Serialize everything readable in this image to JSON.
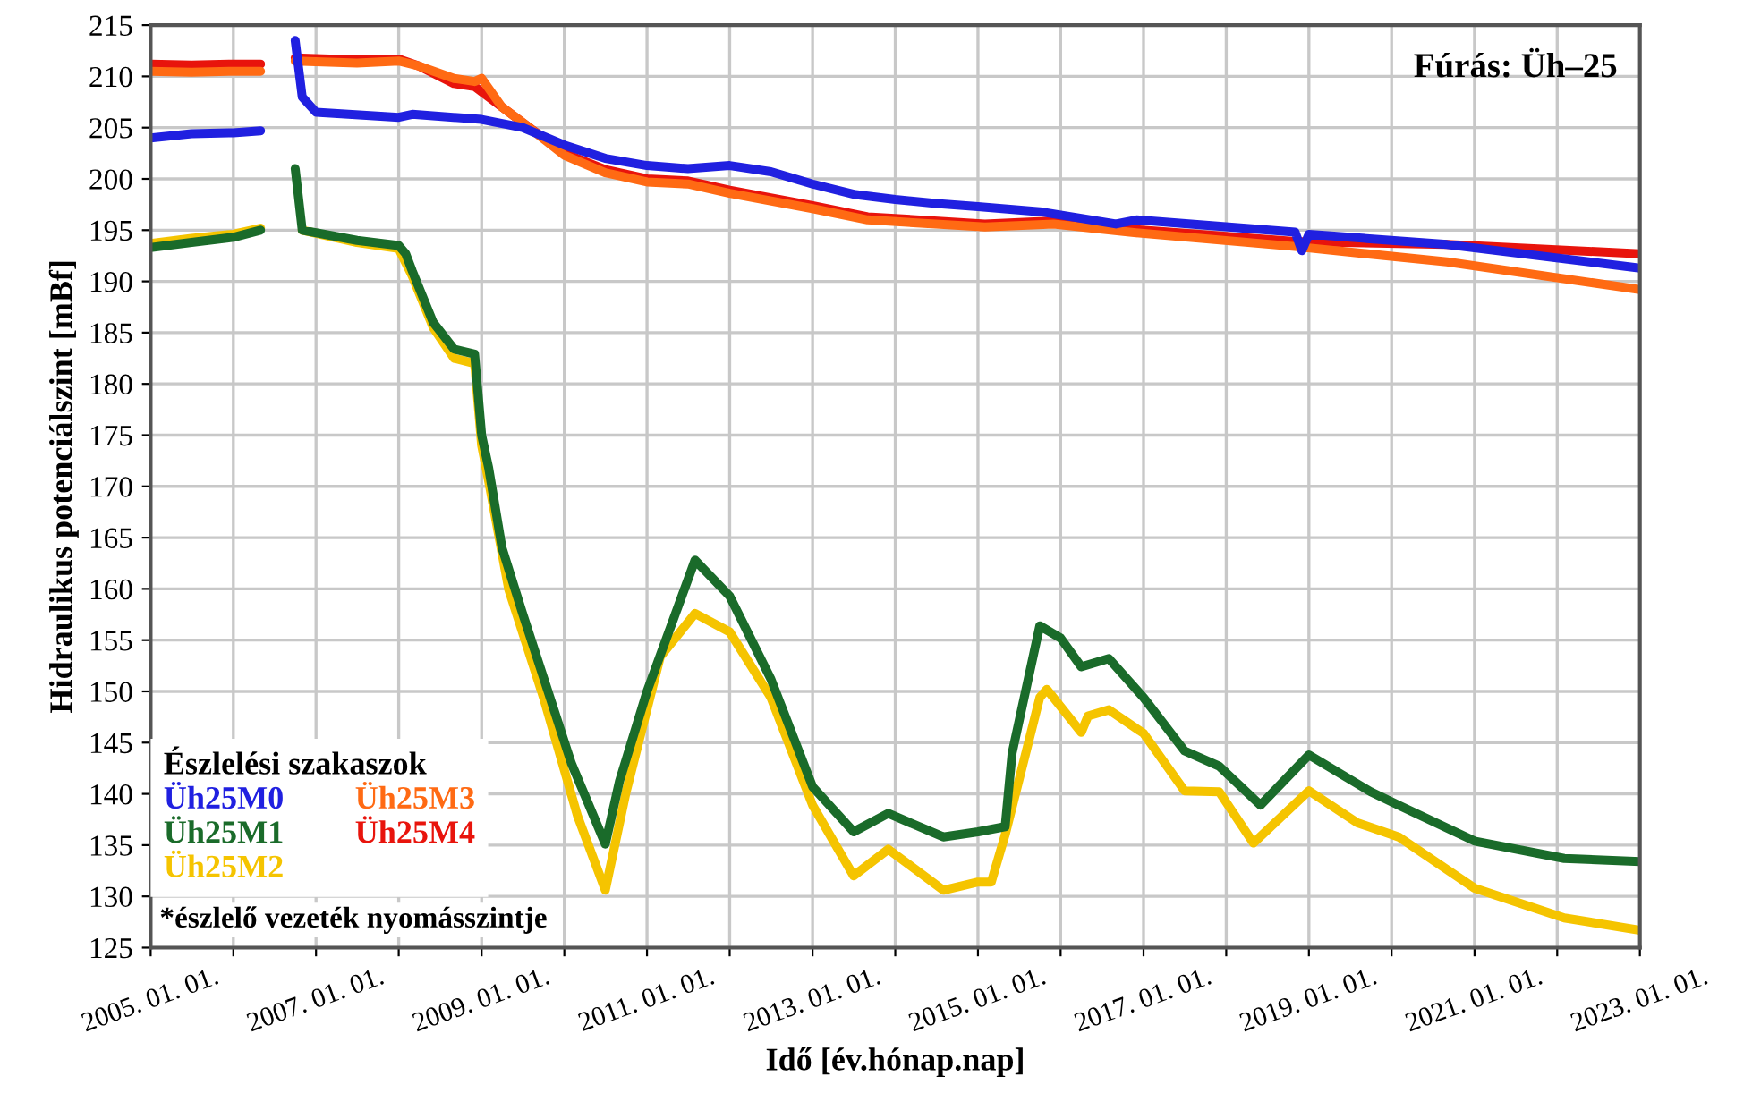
{
  "chart_data": {
    "type": "line",
    "xlabel": "Idő [év.hónap.nap]",
    "ylabel": "Hidraulikus potenciálszint [mBf]",
    "legend_title": "Észlelési szakaszok",
    "legend": "bottom left",
    "grid": true,
    "marker": "none",
    "line_style": "solid",
    "annotations": [
      "Fúrás: Üh–25",
      "*észlelő vezeték nyomásszintje"
    ],
    "xlim": [
      "2005-01-01",
      "2023-01-01"
    ],
    "xticks": [
      {
        "value": "2005-01-01",
        "label": "2005. 01. 01."
      },
      {
        "value": "2006-01-01",
        "label": null
      },
      {
        "value": "2007-01-01",
        "label": "2007. 01. 01."
      },
      {
        "value": "2008-01-01",
        "label": null
      },
      {
        "value": "2009-01-01",
        "label": "2009. 01. 01."
      },
      {
        "value": "2010-01-01",
        "label": null
      },
      {
        "value": "2011-01-01",
        "label": "2011. 01. 01."
      },
      {
        "value": "2012-01-01",
        "label": null
      },
      {
        "value": "2013-01-01",
        "label": "2013. 01. 01."
      },
      {
        "value": "2014-01-01",
        "label": null
      },
      {
        "value": "2015-01-01",
        "label": "2015. 01. 01."
      },
      {
        "value": "2016-01-01",
        "label": null
      },
      {
        "value": "2017-01-01",
        "label": "2017. 01. 01."
      },
      {
        "value": "2018-01-01",
        "label": null
      },
      {
        "value": "2019-01-01",
        "label": "2019. 01. 01."
      },
      {
        "value": "2020-01-01",
        "label": null
      },
      {
        "value": "2021-01-01",
        "label": "2021. 01. 01."
      },
      {
        "value": "2022-01-01",
        "label": null
      },
      {
        "value": "2023-01-01",
        "label": "2023. 01. 01."
      }
    ],
    "ylim": [
      125,
      215
    ],
    "yticks": [
      125,
      130,
      135,
      140,
      145,
      150,
      155,
      160,
      165,
      170,
      175,
      180,
      185,
      190,
      195,
      200,
      205,
      210,
      215
    ],
    "series": [
      {
        "name": "Üh25M0",
        "color": "#2020e0",
        "x": [
          "2005-01",
          "2005-07",
          "2006-01",
          "2006-05",
          "2006-08",
          "2006-10",
          "2006-11",
          "2007-01",
          "2008-01",
          "2008-03",
          "2009-01",
          "2009-07",
          "2010-01",
          "2010-07",
          "2011-01",
          "2011-07",
          "2012-01",
          "2012-07",
          "2013-01",
          "2013-07",
          "2014-01",
          "2014-07",
          "2015-01",
          "2015-10",
          "2016-09",
          "2016-12",
          "2018-11",
          "2018-12",
          "2019-01",
          "2020-09",
          "2023-01"
        ],
        "values": [
          204.0,
          204.4,
          204.5,
          204.7,
          null,
          213.5,
          208.0,
          206.5,
          206.0,
          206.3,
          205.8,
          205.0,
          203.3,
          202.0,
          201.3,
          201.0,
          201.3,
          200.7,
          199.5,
          198.5,
          198.0,
          197.6,
          197.3,
          196.8,
          195.6,
          196.0,
          194.8,
          193.0,
          194.6,
          193.6,
          191.3
        ]
      },
      {
        "name": "Üh25M1",
        "color": "#1a6b2a",
        "x": [
          "2005-01",
          "2005-07",
          "2006-01",
          "2006-05",
          "2006-08",
          "2006-10",
          "2006-11",
          "2007-07",
          "2008-01",
          "2008-02",
          "2008-03",
          "2008-06",
          "2008-09",
          "2008-12",
          "2009-01",
          "2009-02",
          "2009-04",
          "2009-07",
          "2010-02",
          "2010-07",
          "2010-09",
          "2011-01",
          "2011-08",
          "2012-01",
          "2012-07",
          "2013-01",
          "2013-07",
          "2013-12",
          "2014-08",
          "2015-01",
          "2015-05",
          "2015-06",
          "2015-10",
          "2016-01",
          "2016-04",
          "2016-08",
          "2017-01",
          "2017-07",
          "2017-12",
          "2018-06",
          "2019-01",
          "2019-10",
          "2020-02",
          "2021-01",
          "2022-02",
          "2023-01"
        ],
        "values": [
          193.3,
          193.8,
          194.3,
          195.0,
          null,
          201.0,
          195.0,
          194.0,
          193.5,
          192.7,
          191.0,
          186.0,
          183.4,
          182.9,
          175.0,
          171.8,
          164.0,
          157.6,
          143.0,
          135.1,
          141.2,
          150.0,
          162.8,
          159.3,
          151.2,
          140.7,
          136.3,
          138.1,
          135.8,
          136.3,
          136.8,
          144.0,
          156.4,
          155.2,
          152.4,
          153.2,
          149.4,
          144.2,
          142.7,
          138.9,
          143.8,
          140.2,
          138.9,
          135.4,
          133.7,
          133.4
        ]
      },
      {
        "name": "Üh25M2",
        "color": "#f5c400",
        "x": [
          "2005-01",
          "2005-07",
          "2006-01",
          "2006-05",
          "2006-08",
          "2006-11",
          "2007-07",
          "2008-01",
          "2008-03",
          "2008-06",
          "2008-09",
          "2008-12",
          "2009-01",
          "2009-02",
          "2009-05",
          "2009-10",
          "2010-03",
          "2010-07",
          "2010-10",
          "2011-03",
          "2011-08",
          "2012-01",
          "2012-07",
          "2013-01",
          "2013-07",
          "2013-12",
          "2014-08",
          "2015-01",
          "2015-03",
          "2015-05",
          "2015-10",
          "2015-11",
          "2016-04",
          "2016-05",
          "2016-08",
          "2017-01",
          "2017-07",
          "2017-12",
          "2018-05",
          "2019-01",
          "2019-08",
          "2020-02",
          "2021-01",
          "2022-02",
          "2023-01"
        ],
        "values": [
          193.7,
          194.2,
          194.6,
          195.2,
          null,
          195.0,
          193.8,
          193.2,
          190.5,
          185.5,
          182.5,
          182.0,
          174.0,
          170.5,
          159.9,
          149.4,
          137.8,
          130.6,
          140.2,
          153.4,
          157.6,
          155.8,
          149.4,
          138.9,
          132.0,
          134.6,
          130.6,
          131.4,
          131.4,
          136.0,
          149.4,
          150.2,
          146.0,
          147.6,
          148.2,
          145.9,
          140.3,
          140.2,
          135.2,
          140.3,
          137.2,
          135.8,
          130.8,
          127.9,
          126.7
        ]
      },
      {
        "name": "Üh25M3",
        "color": "#ff6a13",
        "x": [
          "2005-01",
          "2005-07",
          "2006-01",
          "2006-05",
          "2006-08",
          "2006-10",
          "2007-07",
          "2008-01",
          "2008-04",
          "2008-09",
          "2008-12",
          "2009-01",
          "2009-04",
          "2009-07",
          "2010-01",
          "2010-07",
          "2011-01",
          "2011-07",
          "2012-01",
          "2013-01",
          "2013-09",
          "2015-02",
          "2015-12",
          "2016-11",
          "2018-11",
          "2020-09",
          "2023-01"
        ],
        "values": [
          210.5,
          210.4,
          210.5,
          210.5,
          null,
          211.5,
          211.3,
          211.5,
          211.0,
          209.8,
          209.5,
          209.8,
          207.0,
          205.5,
          202.3,
          200.6,
          199.7,
          199.5,
          198.6,
          197.1,
          196.0,
          195.3,
          195.6,
          194.8,
          193.4,
          191.9,
          189.2
        ]
      },
      {
        "name": "Üh25M4",
        "color": "#e8140c",
        "x": [
          "2005-01",
          "2005-07",
          "2006-01",
          "2006-05",
          "2006-08",
          "2006-10",
          "2007-07",
          "2008-01",
          "2008-04",
          "2008-09",
          "2008-12",
          "2009-04",
          "2009-07",
          "2010-01",
          "2010-07",
          "2011-01",
          "2011-07",
          "2012-01",
          "2013-01",
          "2013-09",
          "2015-02",
          "2015-12",
          "2016-11",
          "2018-11",
          "2020-09",
          "2023-01"
        ],
        "values": [
          211.2,
          211.1,
          211.2,
          211.2,
          null,
          211.8,
          211.6,
          211.7,
          211.0,
          209.3,
          209.0,
          207.0,
          205.5,
          202.5,
          200.9,
          200.0,
          199.8,
          198.9,
          197.4,
          196.3,
          195.6,
          195.9,
          195.1,
          193.9,
          193.6,
          192.7
        ]
      }
    ]
  }
}
